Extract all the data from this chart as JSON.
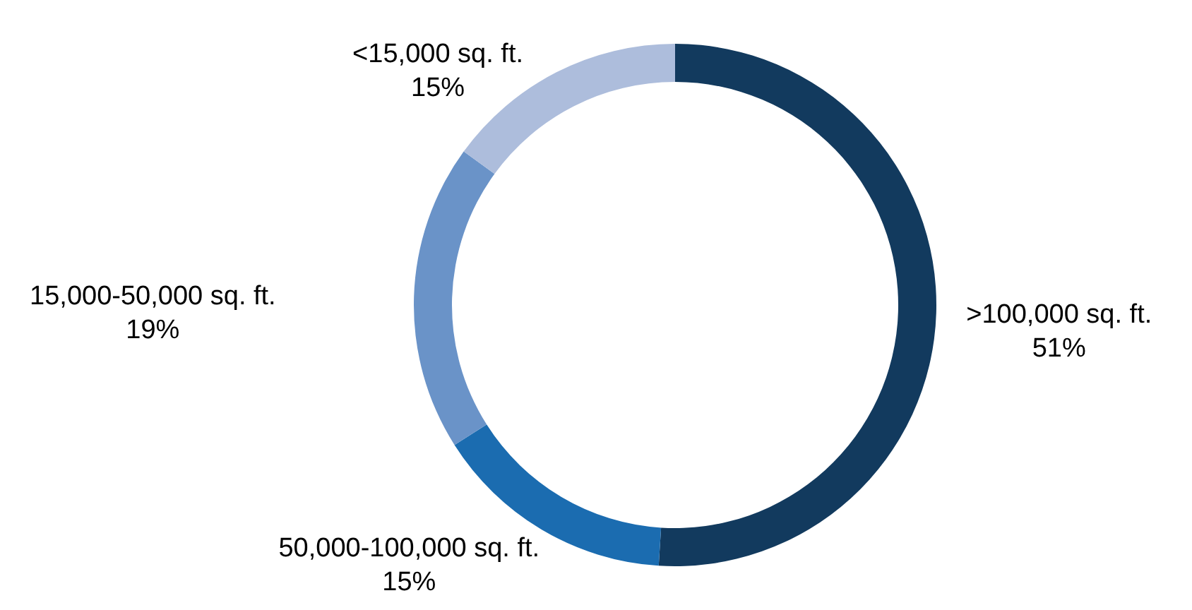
{
  "chart_data": {
    "type": "donut",
    "categories": [
      ">100,000 sq. ft.",
      "50,000-100,000 sq. ft.",
      "15,000-50,000 sq. ft.",
      "<15,000 sq. ft."
    ],
    "values": [
      51,
      15,
      19,
      15
    ],
    "value_labels": [
      "51%",
      "15%",
      "19%",
      "15%"
    ],
    "colors": [
      "#123a5e",
      "#1b6cb0",
      "#6a93c8",
      "#adbddc"
    ]
  }
}
